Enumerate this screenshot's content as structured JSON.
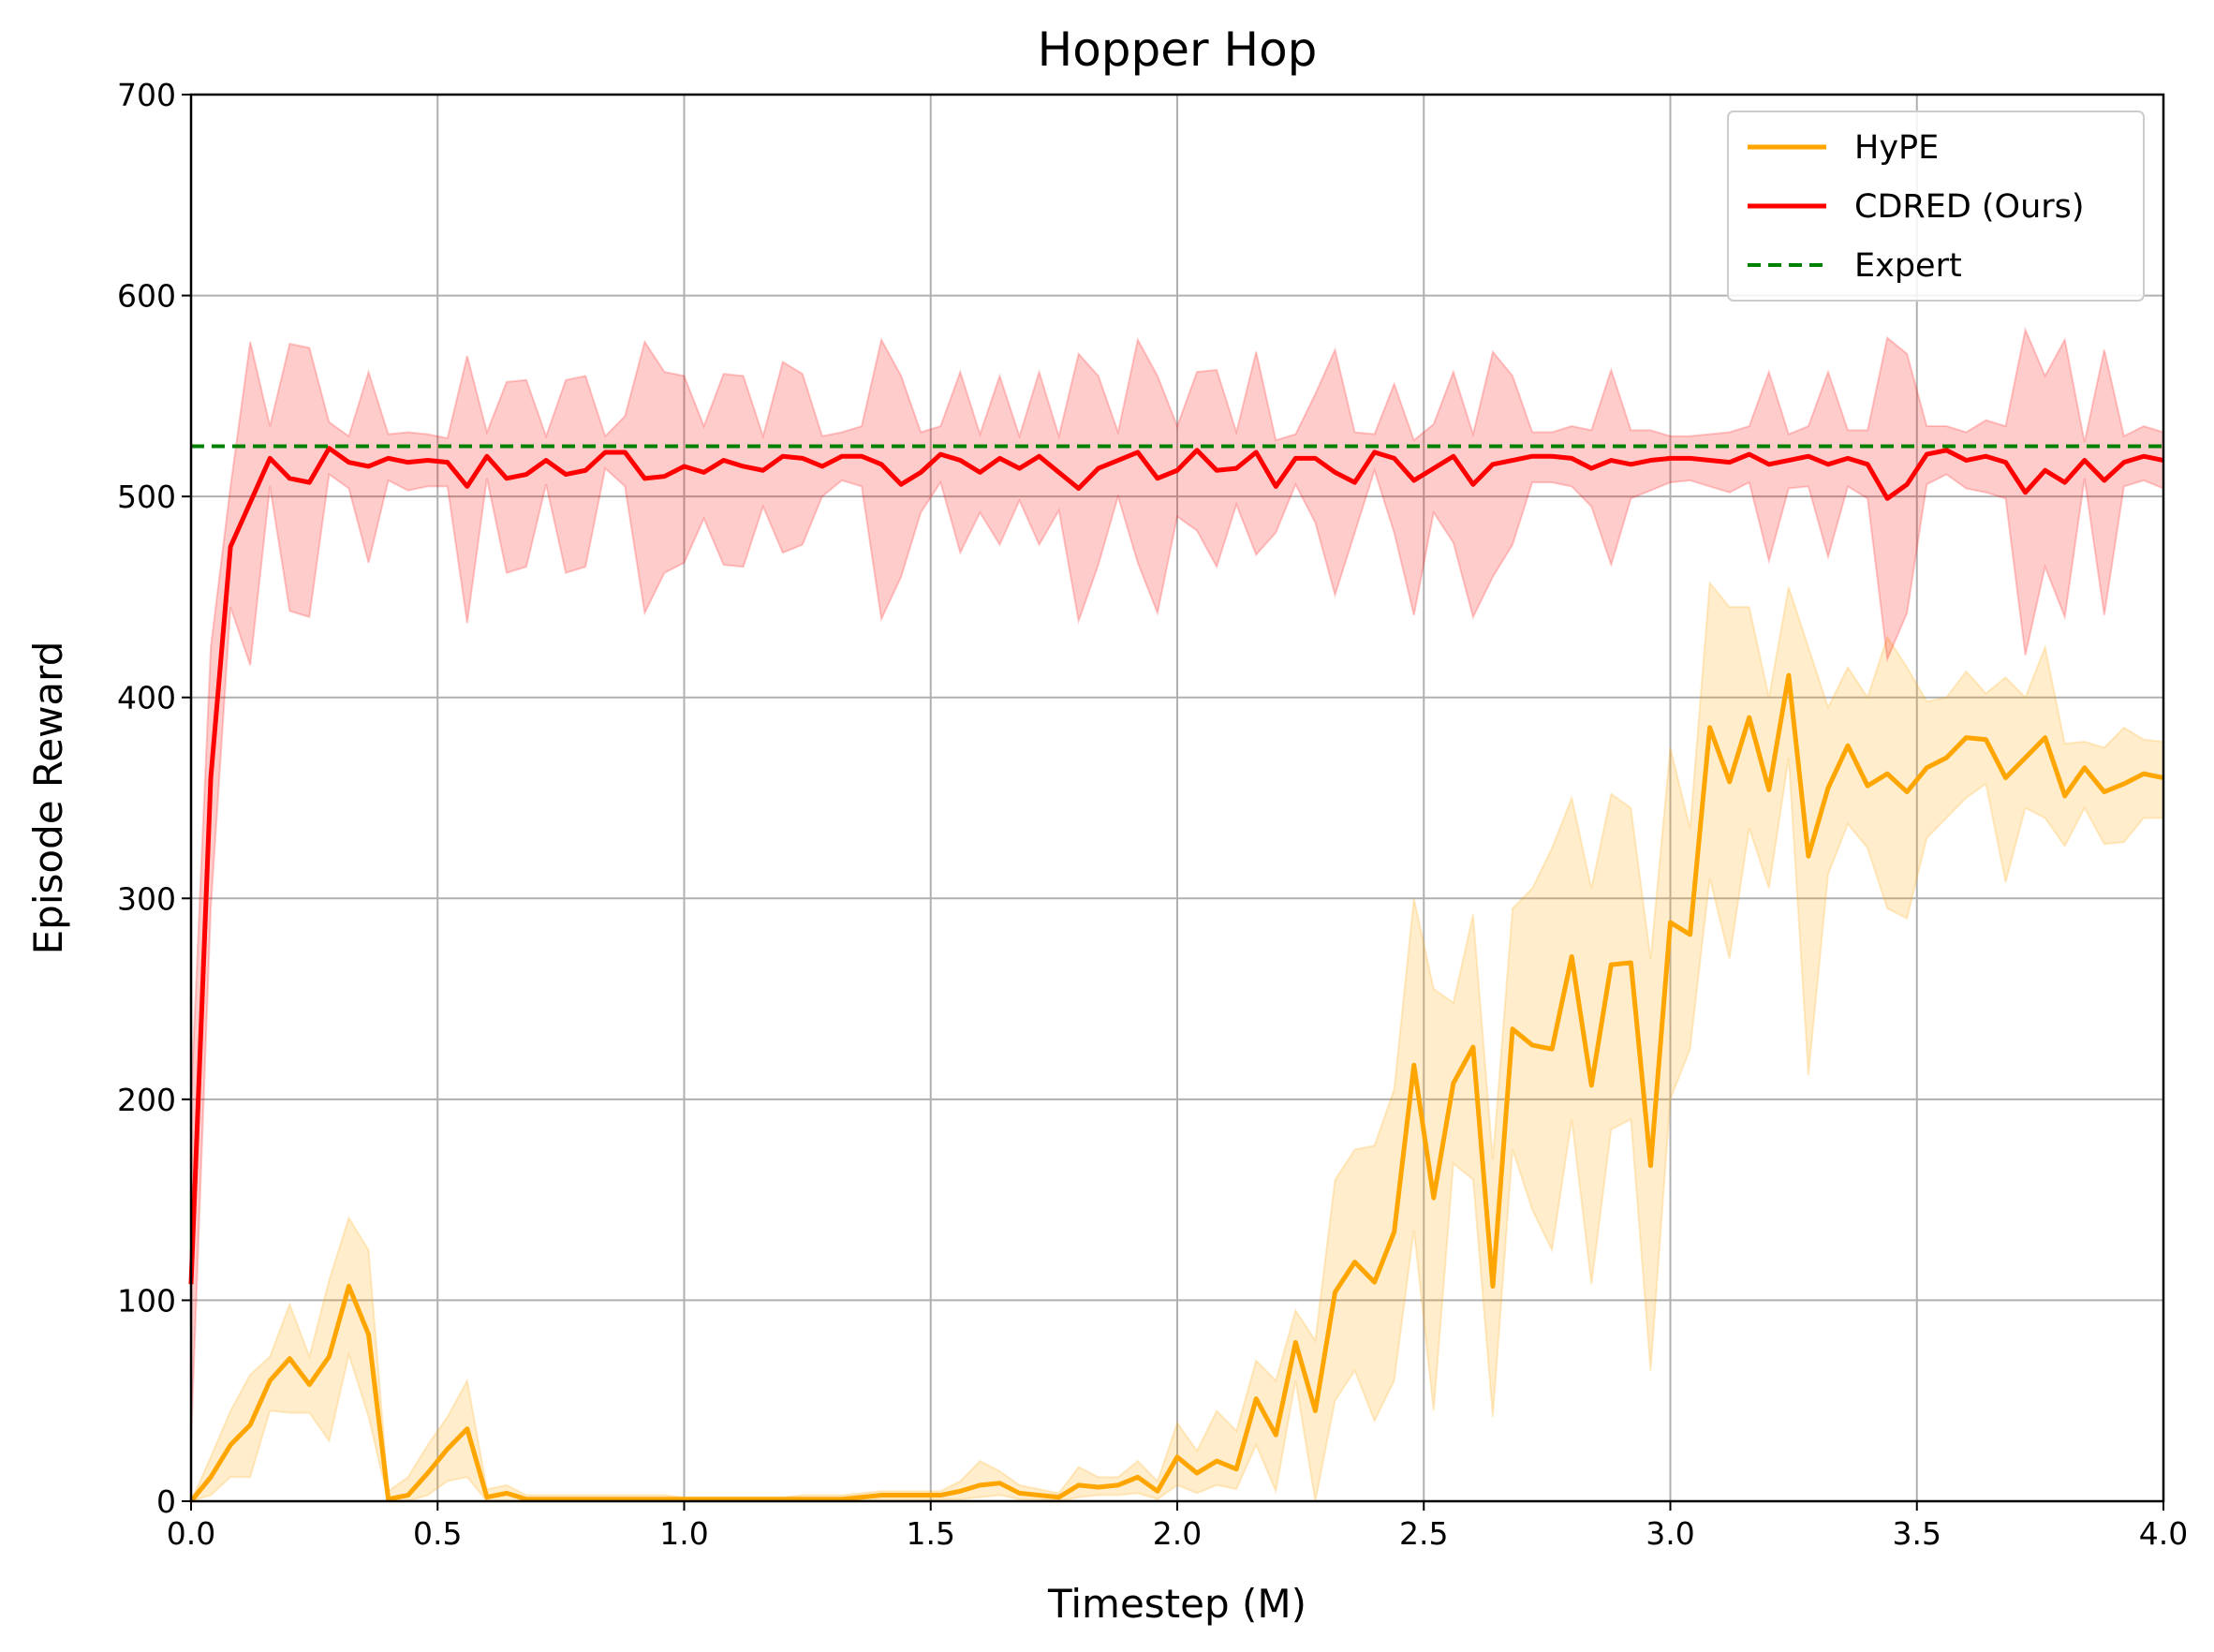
{
  "chart_data": {
    "type": "line",
    "title": "Hopper Hop",
    "xlabel": "Timestep (M)",
    "ylabel": "Episode Reward",
    "xlim": [
      0,
      4.0
    ],
    "ylim": [
      0,
      700
    ],
    "xticks": [
      "0.0",
      "0.5",
      "1.0",
      "1.5",
      "2.0",
      "2.5",
      "3.0",
      "3.5",
      "4.0"
    ],
    "yticks": [
      "0",
      "100",
      "200",
      "300",
      "400",
      "500",
      "600",
      "700"
    ],
    "grid": true,
    "legend_position": "top-right",
    "legend": [
      "HyPE",
      "CDRED (Ours)",
      "Expert"
    ],
    "x": [
      0.0,
      0.04,
      0.08,
      0.12,
      0.16,
      0.2,
      0.24,
      0.28,
      0.32,
      0.36,
      0.4,
      0.44,
      0.48,
      0.52,
      0.56,
      0.6,
      0.64,
      0.68,
      0.72,
      0.76,
      0.8,
      0.84,
      0.88,
      0.92,
      0.96,
      1.0,
      1.04,
      1.08,
      1.12,
      1.16,
      1.2,
      1.24,
      1.28,
      1.32,
      1.36,
      1.4,
      1.44,
      1.48,
      1.52,
      1.56,
      1.6,
      1.64,
      1.68,
      1.72,
      1.76,
      1.8,
      1.84,
      1.88,
      1.92,
      1.96,
      2.0,
      2.04,
      2.08,
      2.12,
      2.16,
      2.2,
      2.24,
      2.28,
      2.32,
      2.36,
      2.4,
      2.44,
      2.48,
      2.52,
      2.56,
      2.6,
      2.64,
      2.68,
      2.72,
      2.76,
      2.8,
      2.84,
      2.88,
      2.92,
      2.96,
      3.0,
      3.04,
      3.08,
      3.12,
      3.16,
      3.2,
      3.24,
      3.28,
      3.32,
      3.36,
      3.4,
      3.44,
      3.48,
      3.52,
      3.56,
      3.6,
      3.64,
      3.68,
      3.72,
      3.76,
      3.8,
      3.84,
      3.88,
      3.92,
      3.96,
      4.0
    ],
    "series": [
      {
        "name": "HyPE",
        "color": "#FFA500",
        "style": "solid",
        "values": [
          0,
          12,
          28,
          38,
          60,
          71,
          58,
          72,
          107,
          83,
          1,
          3,
          14,
          26,
          36,
          2,
          4,
          1,
          1,
          1,
          1,
          1,
          1,
          1,
          1,
          1,
          1,
          1,
          1,
          1,
          1,
          1,
          1,
          1,
          2,
          3,
          3,
          3,
          3,
          5,
          8,
          9,
          4,
          3,
          2,
          8,
          7,
          8,
          12,
          5,
          22,
          14,
          20,
          16,
          51,
          33,
          79,
          45,
          104,
          119,
          109,
          134,
          217,
          151,
          208,
          226,
          107,
          235,
          227,
          225,
          271,
          207,
          267,
          268,
          167,
          288,
          282,
          385,
          358,
          390,
          354,
          411,
          321,
          355,
          376,
          356,
          362,
          353,
          365,
          370,
          380,
          379,
          360,
          370,
          380,
          351,
          365,
          353,
          357,
          362,
          360
        ],
        "upper": [
          0,
          22,
          45,
          63,
          72,
          98,
          72,
          110,
          141,
          125,
          5,
          12,
          28,
          42,
          60,
          6,
          8,
          3,
          3,
          3,
          3,
          3,
          3,
          3,
          3,
          2,
          2,
          2,
          2,
          2,
          2,
          3,
          3,
          3,
          4,
          5,
          5,
          5,
          5,
          10,
          20,
          15,
          8,
          6,
          4,
          17,
          12,
          12,
          20,
          10,
          39,
          25,
          45,
          35,
          70,
          60,
          95,
          80,
          160,
          175,
          177,
          205,
          300,
          255,
          248,
          292,
          170,
          295,
          305,
          325,
          350,
          305,
          352,
          345,
          270,
          375,
          335,
          457,
          445,
          445,
          400,
          455,
          425,
          395,
          415,
          400,
          430,
          415,
          398,
          400,
          413,
          402,
          410,
          400,
          425,
          377,
          378,
          375,
          385,
          379,
          378
        ],
        "lower": [
          0,
          3,
          12,
          12,
          45,
          44,
          44,
          30,
          73,
          42,
          0,
          0,
          3,
          10,
          12,
          0,
          0,
          0,
          0,
          0,
          0,
          0,
          0,
          0,
          0,
          0,
          0,
          0,
          0,
          0,
          0,
          0,
          0,
          0,
          0,
          1,
          1,
          1,
          1,
          1,
          2,
          3,
          1,
          1,
          0,
          2,
          3,
          3,
          4,
          1,
          8,
          4,
          8,
          6,
          28,
          5,
          60,
          0,
          50,
          65,
          40,
          60,
          135,
          45,
          168,
          160,
          42,
          175,
          145,
          125,
          190,
          108,
          185,
          190,
          65,
          200,
          225,
          310,
          270,
          335,
          305,
          370,
          212,
          312,
          337,
          325,
          295,
          290,
          330,
          340,
          350,
          357,
          308,
          345,
          340,
          326,
          345,
          327,
          328,
          340,
          340
        ]
      },
      {
        "name": "CDRED (Ours)",
        "color": "#FF0000",
        "style": "solid",
        "values": [
          108,
          360,
          475,
          497,
          519,
          509,
          507,
          524,
          517,
          515,
          519,
          517,
          518,
          517,
          505,
          520,
          509,
          511,
          518,
          511,
          513,
          522,
          522,
          509,
          510,
          515,
          512,
          518,
          515,
          513,
          520,
          519,
          515,
          520,
          520,
          516,
          506,
          512,
          521,
          518,
          512,
          519,
          514,
          520,
          512,
          504,
          514,
          518,
          522,
          509,
          513,
          523,
          513,
          514,
          522,
          505,
          519,
          519,
          512,
          507,
          522,
          519,
          508,
          514,
          520,
          506,
          516,
          518,
          520,
          520,
          519,
          514,
          518,
          516,
          518,
          519,
          519,
          518,
          517,
          521,
          516,
          518,
          520,
          516,
          519,
          516,
          499,
          506,
          521,
          523,
          518,
          520,
          517,
          502,
          513,
          507,
          518,
          508,
          517,
          520,
          518
        ],
        "upper": [
          200,
          425,
          505,
          577,
          535,
          576,
          574,
          537,
          530,
          562,
          531,
          532,
          531,
          529,
          570,
          532,
          557,
          558,
          530,
          558,
          560,
          530,
          540,
          577,
          562,
          560,
          535,
          561,
          560,
          530,
          567,
          561,
          530,
          532,
          535,
          578,
          560,
          532,
          535,
          562,
          531,
          560,
          530,
          562,
          530,
          571,
          560,
          532,
          578,
          560,
          535,
          562,
          563,
          532,
          572,
          528,
          531,
          551,
          573,
          532,
          531,
          556,
          528,
          536,
          562,
          531,
          572,
          560,
          532,
          532,
          535,
          533,
          563,
          533,
          533,
          530,
          530,
          531,
          532,
          535,
          562,
          531,
          535,
          562,
          533,
          533,
          579,
          571,
          535,
          535,
          532,
          538,
          535,
          583,
          560,
          578,
          527,
          573,
          530,
          535,
          532
        ],
        "lower": [
          30,
          295,
          445,
          416,
          505,
          443,
          440,
          511,
          504,
          467,
          508,
          503,
          505,
          505,
          437,
          509,
          462,
          465,
          506,
          462,
          465,
          514,
          505,
          442,
          462,
          467,
          489,
          466,
          465,
          495,
          472,
          476,
          500,
          508,
          505,
          439,
          460,
          492,
          507,
          472,
          492,
          476,
          498,
          476,
          493,
          438,
          466,
          500,
          467,
          442,
          490,
          483,
          465,
          496,
          471,
          482,
          506,
          487,
          451,
          482,
          513,
          482,
          441,
          492,
          477,
          440,
          460,
          476,
          507,
          507,
          505,
          495,
          466,
          499,
          503,
          507,
          508,
          505,
          502,
          507,
          468,
          504,
          505,
          470,
          505,
          499,
          419,
          442,
          506,
          511,
          504,
          502,
          499,
          421,
          465,
          440,
          509,
          441,
          505,
          508,
          504
        ]
      },
      {
        "name": "Expert",
        "color": "#008000",
        "style": "dashed",
        "constant": 525
      }
    ]
  }
}
